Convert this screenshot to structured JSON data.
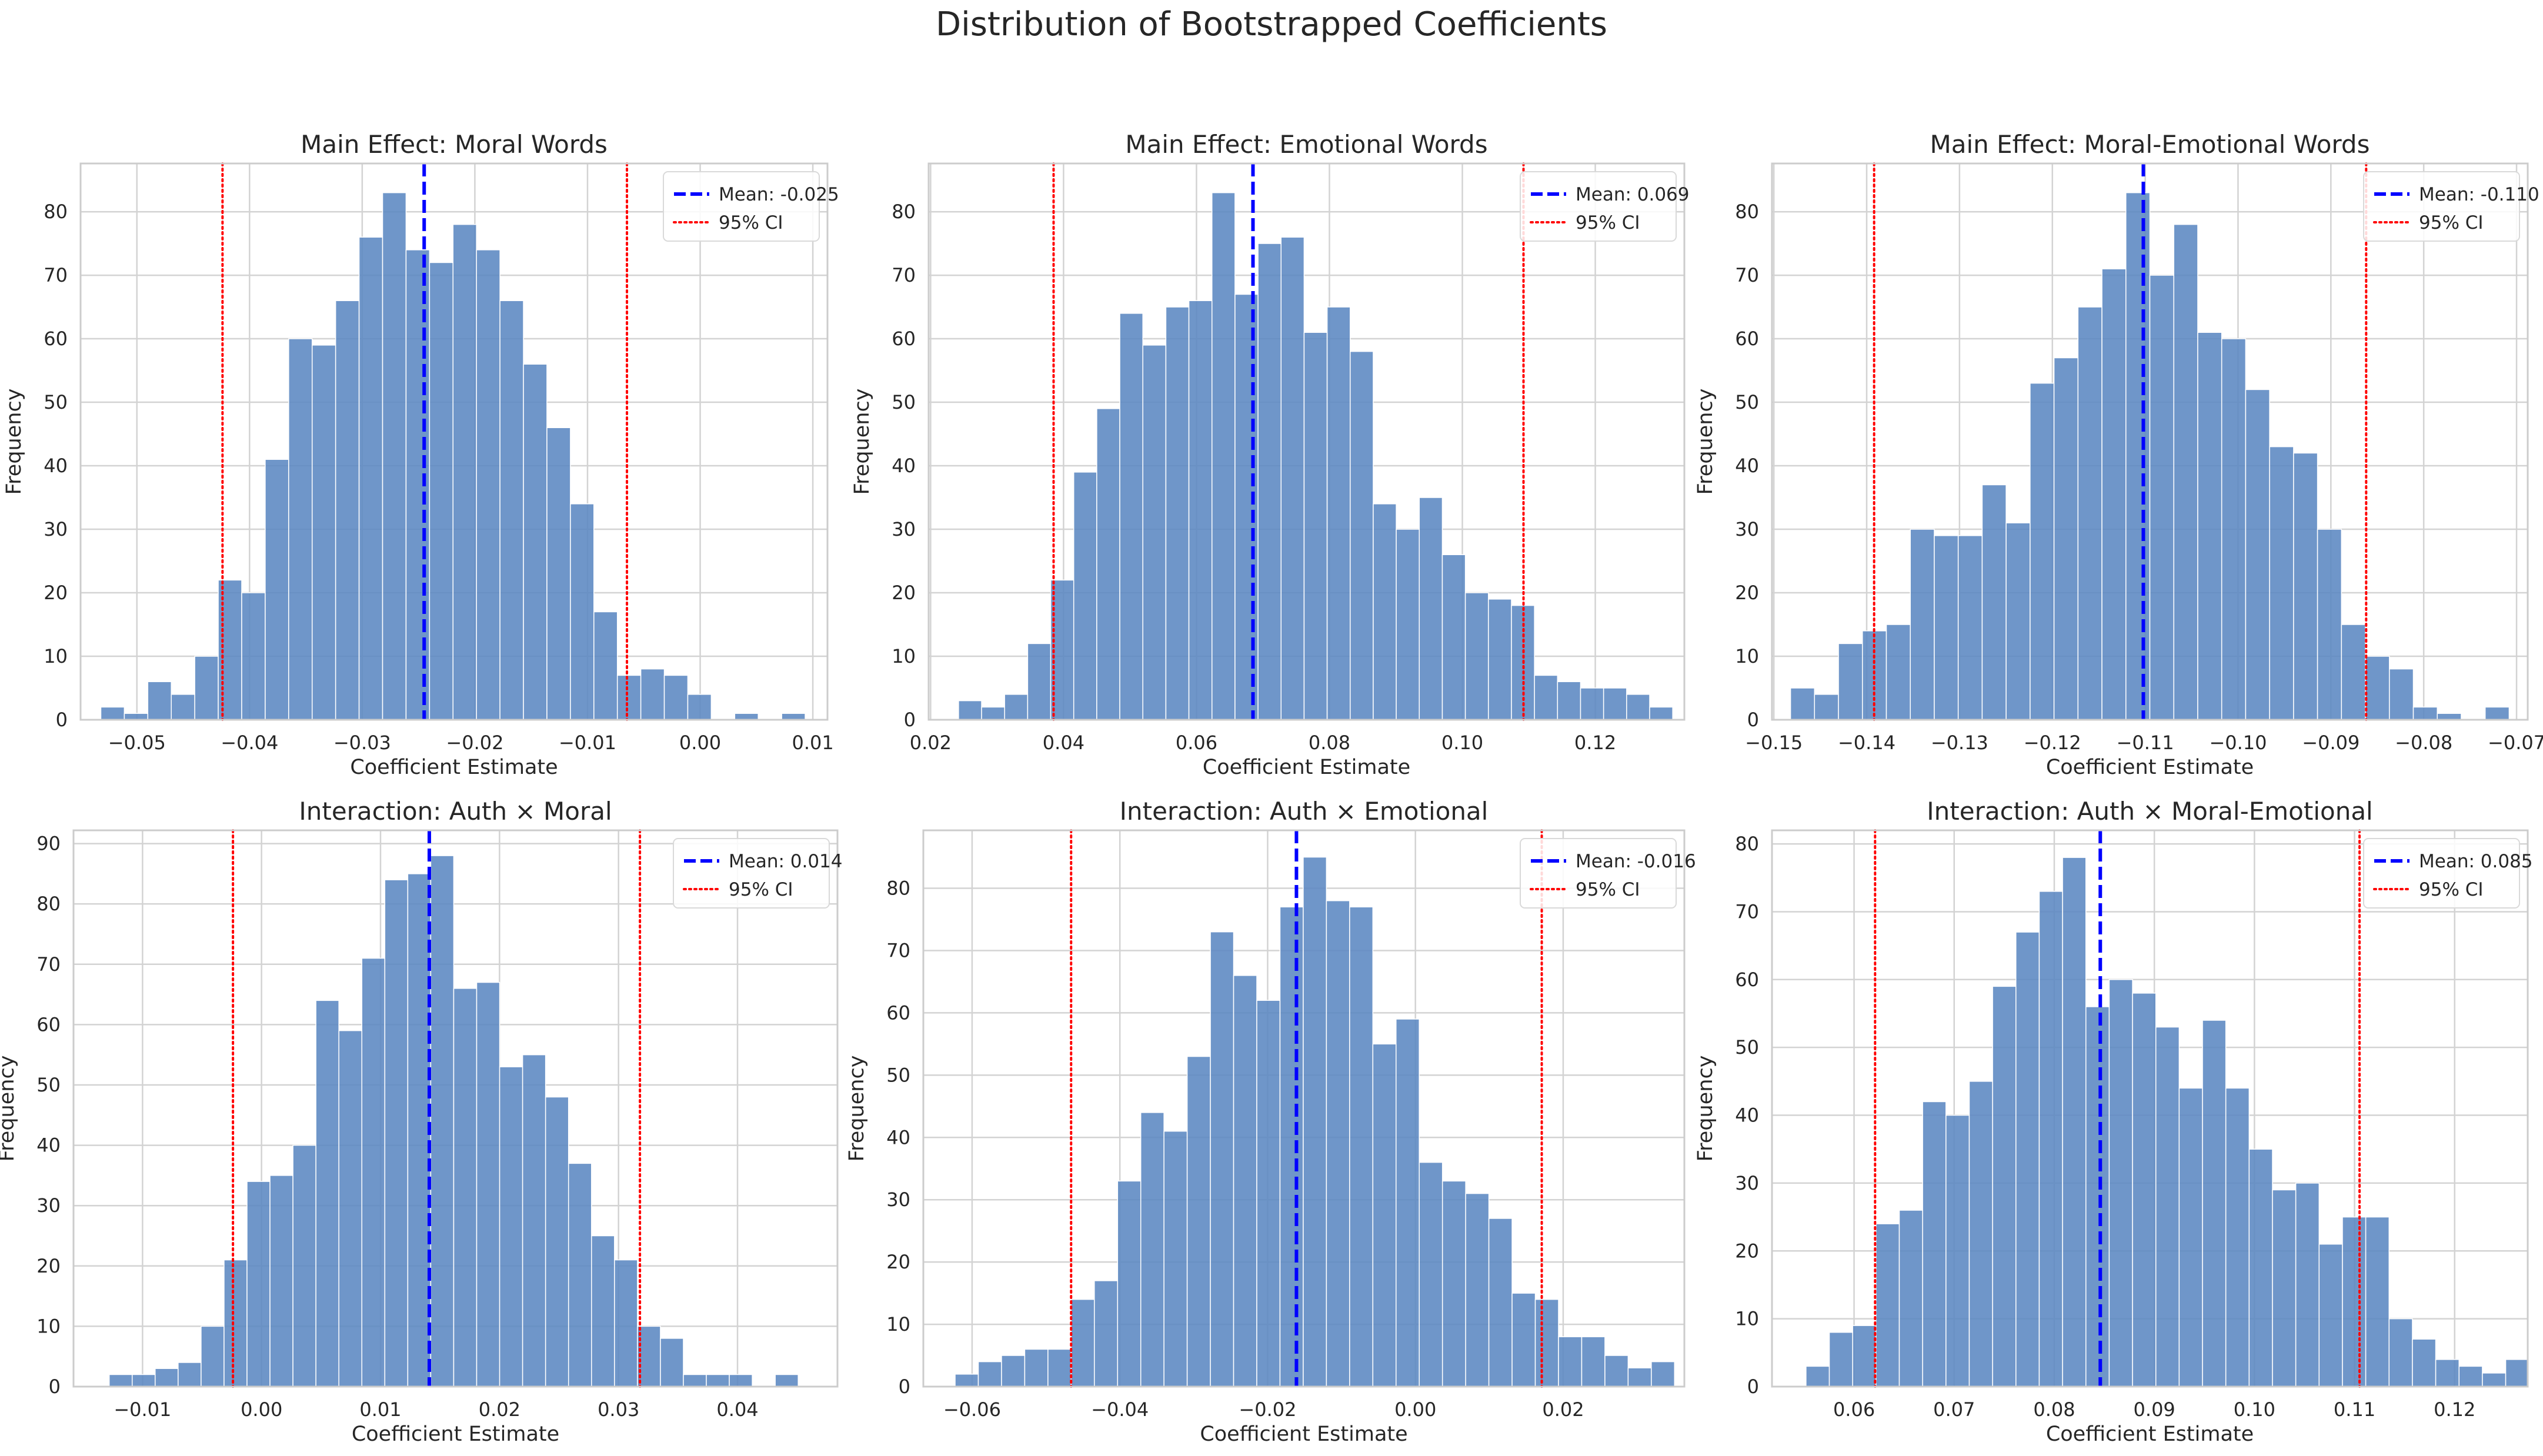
{
  "figure": {
    "title": "Distribution of Bootstrapped Coefficients"
  },
  "colors": {
    "bar": "#5B88C1",
    "grid": "#D3D3D3",
    "mean": "#0000FF",
    "ci": "#FF0000",
    "text": "#262626",
    "axis": "#CCCCCC"
  },
  "chart_data": [
    {
      "type": "bar",
      "title": "Main Effect: Moral Words",
      "xlabel": "Coefficient Estimate",
      "ylabel": "Frequency",
      "xlim": [
        -0.055,
        0.0113
      ],
      "ylim": [
        0,
        87.6
      ],
      "xticks": [
        -0.05,
        -0.04,
        -0.03,
        -0.02,
        -0.01,
        0.0,
        0.01
      ],
      "xtick_labels": [
        "−0.05",
        "−0.04",
        "−0.03",
        "−0.02",
        "−0.01",
        "0.00",
        "0.01"
      ],
      "yticks": [
        0,
        10,
        20,
        30,
        40,
        50,
        60,
        70,
        80
      ],
      "yticks_labels": [
        "0",
        "10",
        "20",
        "30",
        "40",
        "50",
        "60",
        "70",
        "80"
      ],
      "bin_start": -0.0532,
      "bin_width": 0.002084,
      "values": [
        2,
        1,
        6,
        4,
        10,
        22,
        20,
        41,
        60,
        59,
        66,
        76,
        83,
        74,
        72,
        78,
        74,
        66,
        56,
        46,
        34,
        17,
        7,
        8,
        7,
        4,
        0,
        1,
        0,
        1
      ],
      "mean": -0.0245,
      "ci": [
        -0.0424,
        -0.0065
      ],
      "legend": {
        "mean_label": "Mean: -0.025",
        "ci_label": "95% CI"
      }
    },
    {
      "type": "bar",
      "title": "Main Effect: Emotional Words",
      "xlabel": "Coefficient Estimate",
      "ylabel": "Frequency",
      "xlim": [
        0.0197,
        0.1334
      ],
      "ylim": [
        0,
        87.6
      ],
      "xticks": [
        0.02,
        0.04,
        0.06,
        0.08,
        0.1,
        0.12
      ],
      "xtick_labels": [
        "0.02",
        "0.04",
        "0.06",
        "0.08",
        "0.10",
        "0.12"
      ],
      "yticks": [
        0,
        10,
        20,
        30,
        40,
        50,
        60,
        70,
        80
      ],
      "yticks_labels": [
        "0",
        "10",
        "20",
        "30",
        "40",
        "50",
        "60",
        "70",
        "80"
      ],
      "bin_start": 0.0242,
      "bin_width": 0.003466,
      "values": [
        3,
        2,
        4,
        12,
        22,
        39,
        49,
        64,
        59,
        65,
        66,
        83,
        67,
        75,
        76,
        61,
        65,
        58,
        34,
        30,
        35,
        26,
        20,
        19,
        18,
        7,
        6,
        5,
        5,
        4,
        2
      ],
      "mean": 0.0685,
      "ci": [
        0.0385,
        0.1092
      ],
      "legend": {
        "mean_label": "Mean: 0.069",
        "ci_label": "95% CI"
      }
    },
    {
      "type": "bar",
      "title": "Main Effect: Moral-Emotional Words",
      "xlabel": "Coefficient Estimate",
      "ylabel": "Frequency",
      "xlim": [
        -0.1502,
        -0.0688
      ],
      "ylim": [
        0,
        87.6
      ],
      "xticks": [
        -0.15,
        -0.14,
        -0.13,
        -0.12,
        -0.11,
        -0.1,
        -0.09,
        -0.08,
        -0.07
      ],
      "xtick_labels": [
        "−0.15",
        "−0.14",
        "−0.13",
        "−0.12",
        "−0.11",
        "−0.10",
        "−0.09",
        "−0.08",
        "−0.07"
      ],
      "yticks": [
        0,
        10,
        20,
        30,
        40,
        50,
        60,
        70,
        80
      ],
      "yticks_labels": [
        "0",
        "10",
        "20",
        "30",
        "40",
        "50",
        "60",
        "70",
        "80"
      ],
      "bin_start": -0.1482,
      "bin_width": 0.00258,
      "values": [
        5,
        4,
        12,
        14,
        15,
        30,
        29,
        29,
        37,
        31,
        53,
        57,
        65,
        71,
        83,
        70,
        78,
        61,
        60,
        52,
        43,
        42,
        30,
        15,
        10,
        8,
        2,
        1,
        0,
        2
      ],
      "mean": -0.1102,
      "ci": [
        -0.1392,
        -0.0862
      ],
      "legend": {
        "mean_label": "Mean: -0.110",
        "ci_label": "95% CI"
      }
    },
    {
      "type": "bar",
      "title": "Interaction: Auth × Moral",
      "xlabel": "Coefficient Estimate",
      "ylabel": "Frequency",
      "xlim": [
        -0.0158,
        0.0484
      ],
      "ylim": [
        0,
        92.2
      ],
      "xticks": [
        -0.01,
        0.0,
        0.01,
        0.02,
        0.03,
        0.04
      ],
      "xtick_labels": [
        "−0.01",
        "0.00",
        "0.01",
        "0.02",
        "0.03",
        "0.04"
      ],
      "yticks": [
        0,
        10,
        20,
        30,
        40,
        50,
        60,
        70,
        80,
        90
      ],
      "yticks_labels": [
        "0",
        "10",
        "20",
        "30",
        "40",
        "50",
        "60",
        "70",
        "80",
        "90"
      ],
      "bin_start": -0.0128,
      "bin_width": 0.00193,
      "values": [
        2,
        2,
        3,
        4,
        10,
        21,
        34,
        35,
        40,
        64,
        59,
        71,
        84,
        85,
        88,
        66,
        67,
        53,
        55,
        48,
        37,
        25,
        21,
        10,
        8,
        2,
        2,
        2,
        0,
        2
      ],
      "mean": 0.0141,
      "ci": [
        -0.0024,
        0.0318
      ],
      "legend": {
        "mean_label": "Mean: 0.014",
        "ci_label": "95% CI"
      }
    },
    {
      "type": "bar",
      "title": "Interaction: Auth × Emotional",
      "xlabel": "Coefficient Estimate",
      "ylabel": "Frequency",
      "xlim": [
        -0.0666,
        0.0364
      ],
      "ylim": [
        0,
        89.3
      ],
      "xticks": [
        -0.06,
        -0.04,
        -0.02,
        0.0,
        0.02
      ],
      "xtick_labels": [
        "−0.06",
        "−0.04",
        "−0.02",
        "0.00",
        "0.02"
      ],
      "yticks": [
        0,
        10,
        20,
        30,
        40,
        50,
        60,
        70,
        80
      ],
      "yticks_labels": [
        "0",
        "10",
        "20",
        "30",
        "40",
        "50",
        "60",
        "70",
        "80"
      ],
      "bin_start": -0.0623,
      "bin_width": 0.003141,
      "values": [
        2,
        4,
        5,
        6,
        6,
        14,
        17,
        33,
        44,
        41,
        53,
        73,
        66,
        62,
        77,
        85,
        78,
        77,
        55,
        59,
        36,
        33,
        31,
        27,
        15,
        14,
        8,
        8,
        5,
        3,
        4
      ],
      "mean": -0.0161,
      "ci": [
        -0.0466,
        0.0171
      ],
      "legend": {
        "mean_label": "Mean: -0.016",
        "ci_label": "95% CI"
      }
    },
    {
      "type": "bar",
      "title": "Interaction: Auth × Moral-Emotional",
      "xlabel": "Coefficient Estimate",
      "ylabel": "Frequency",
      "xlim": [
        0.0518,
        0.1273
      ],
      "ylim": [
        0,
        82
      ],
      "xticks": [
        0.06,
        0.07,
        0.08,
        0.09,
        0.1,
        0.11,
        0.12
      ],
      "xtick_labels": [
        "0.06",
        "0.07",
        "0.08",
        "0.09",
        "0.10",
        "0.11",
        "0.12"
      ],
      "yticks": [
        0,
        10,
        20,
        30,
        40,
        50,
        60,
        70,
        80
      ],
      "yticks_labels": [
        "0",
        "10",
        "20",
        "30",
        "40",
        "50",
        "60",
        "70",
        "80"
      ],
      "bin_start": 0.0552,
      "bin_width": 0.00233,
      "values": [
        3,
        8,
        9,
        24,
        26,
        42,
        40,
        45,
        59,
        67,
        73,
        78,
        56,
        60,
        58,
        53,
        44,
        54,
        44,
        35,
        29,
        30,
        21,
        25,
        25,
        10,
        7,
        4,
        3,
        2,
        4
      ],
      "mean": 0.0846,
      "ci": [
        0.0621,
        0.1105
      ],
      "legend": {
        "mean_label": "Mean: 0.085",
        "ci_label": "95% CI"
      }
    }
  ]
}
